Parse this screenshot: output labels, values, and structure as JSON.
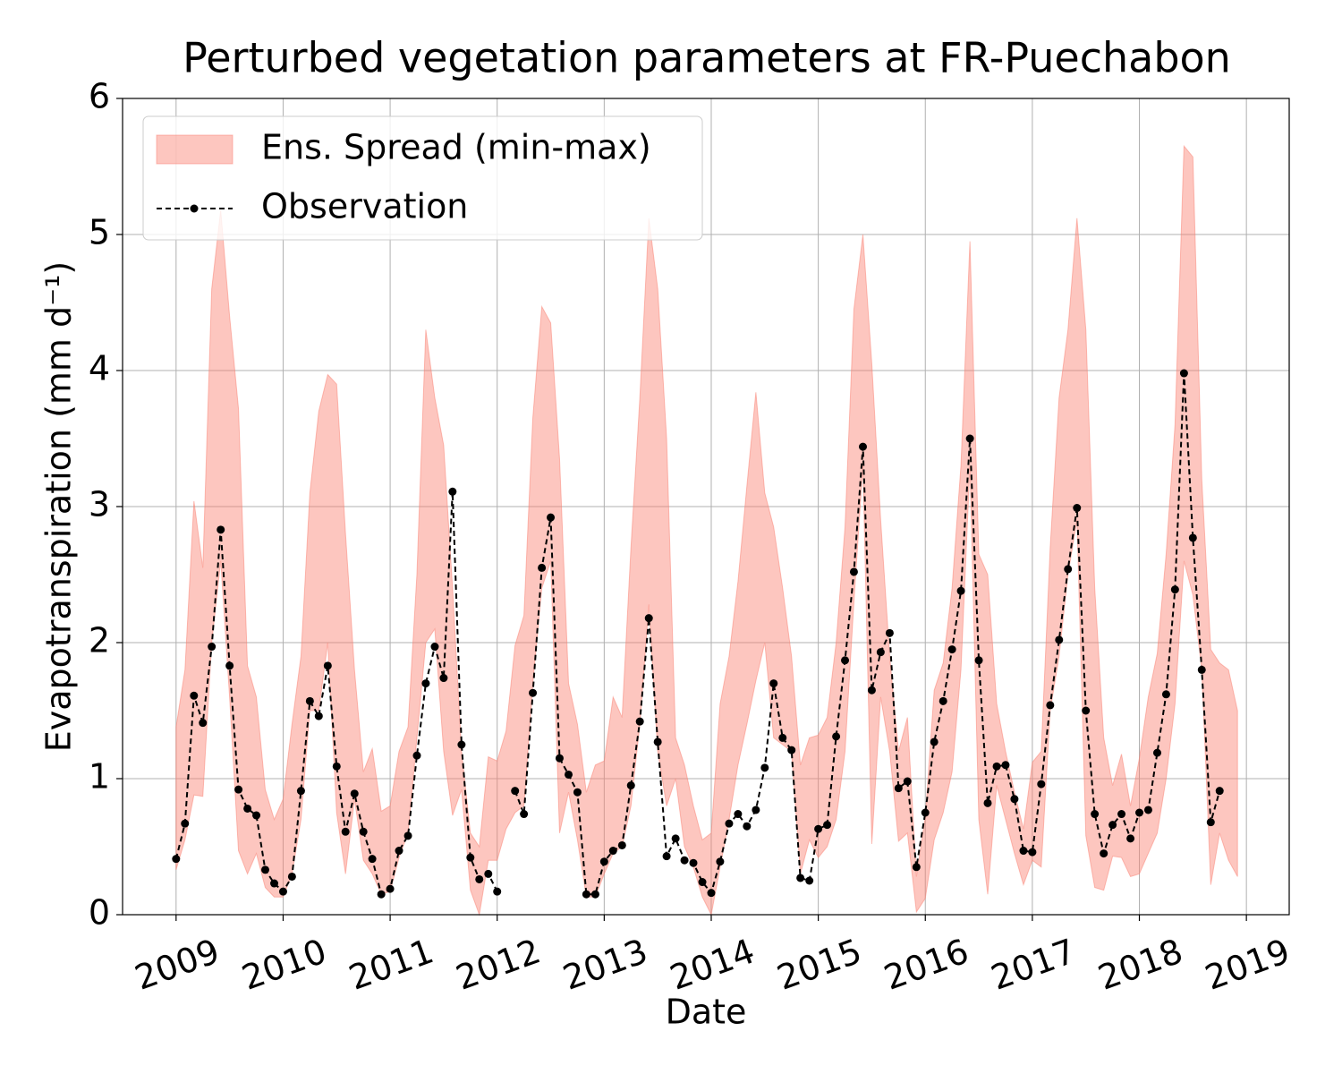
{
  "chart_data": {
    "type": "band-line",
    "title": "Perturbed vegetation parameters at FR-Puechabon",
    "xlabel": "Date",
    "ylabel": "Evapotranspiration  (mm d⁻¹)",
    "xlim": [
      2008.5,
      2019.4
    ],
    "xticks": [
      2009,
      2010,
      2011,
      2012,
      2013,
      2014,
      2015,
      2016,
      2017,
      2018,
      2019
    ],
    "ylim": [
      0,
      6
    ],
    "yticks": [
      0,
      1,
      2,
      3,
      4,
      5,
      6
    ],
    "grid": true,
    "legend": "upper left",
    "x": [
      2009,
      2009.083,
      2009.167,
      2009.25,
      2009.333,
      2009.417,
      2009.5,
      2009.583,
      2009.667,
      2009.75,
      2009.833,
      2009.917,
      2010,
      2010.083,
      2010.167,
      2010.25,
      2010.333,
      2010.417,
      2010.5,
      2010.583,
      2010.667,
      2010.75,
      2010.833,
      2010.917,
      2011,
      2011.083,
      2011.167,
      2011.25,
      2011.333,
      2011.417,
      2011.5,
      2011.583,
      2011.667,
      2011.75,
      2011.833,
      2011.917,
      2012,
      2012.083,
      2012.167,
      2012.25,
      2012.333,
      2012.417,
      2012.5,
      2012.583,
      2012.667,
      2012.75,
      2012.833,
      2012.917,
      2013,
      2013.083,
      2013.167,
      2013.25,
      2013.333,
      2013.417,
      2013.5,
      2013.583,
      2013.667,
      2013.75,
      2013.833,
      2013.917,
      2014,
      2014.083,
      2014.167,
      2014.25,
      2014.333,
      2014.417,
      2014.5,
      2014.583,
      2014.667,
      2014.75,
      2014.833,
      2014.917,
      2015,
      2015.083,
      2015.167,
      2015.25,
      2015.333,
      2015.417,
      2015.5,
      2015.583,
      2015.667,
      2015.75,
      2015.833,
      2015.917,
      2016,
      2016.083,
      2016.167,
      2016.25,
      2016.333,
      2016.417,
      2016.5,
      2016.583,
      2016.667,
      2016.75,
      2016.833,
      2016.917,
      2017,
      2017.083,
      2017.167,
      2017.25,
      2017.333,
      2017.417,
      2017.5,
      2017.583,
      2017.667,
      2017.75,
      2017.833,
      2017.917,
      2018,
      2018.083,
      2018.167,
      2018.25,
      2018.333,
      2018.417,
      2018.5,
      2018.583,
      2018.667,
      2018.75,
      2018.833,
      2018.917
    ],
    "series": [
      {
        "name": "Ens. Spread (min-max)",
        "color": "#fa8072",
        "kind": "band",
        "max": [
          1.38,
          1.8,
          3.04,
          2.55,
          4.6,
          5.18,
          4.4,
          3.72,
          1.83,
          1.6,
          0.92,
          0.7,
          0.85,
          1.4,
          1.9,
          3.1,
          3.7,
          3.97,
          3.9,
          2.8,
          1.8,
          1.05,
          1.22,
          0.76,
          0.8,
          1.2,
          1.38,
          2.5,
          4.3,
          3.8,
          3.45,
          2.4,
          1.2,
          0.6,
          0.5,
          1.16,
          1.13,
          1.35,
          1.98,
          2.2,
          3.65,
          4.47,
          4.35,
          3.35,
          1.7,
          1.4,
          0.9,
          1.1,
          1.13,
          1.6,
          1.45,
          2.7,
          3.8,
          5.12,
          4.6,
          3.5,
          1.3,
          1.1,
          0.8,
          0.55,
          0.6,
          1.55,
          1.9,
          2.45,
          3.15,
          3.84,
          3.1,
          2.85,
          2.4,
          1.9,
          1.1,
          1.3,
          1.32,
          1.45,
          2.0,
          2.85,
          4.45,
          5.0,
          4.05,
          2.9,
          1.9,
          1.2,
          1.45,
          0.28,
          0.72,
          1.65,
          1.85,
          2.4,
          3.3,
          4.95,
          2.65,
          2.5,
          1.55,
          1.2,
          0.9,
          0.63,
          1.12,
          1.2,
          2.7,
          3.8,
          4.3,
          5.12,
          4.3,
          2.4,
          1.3,
          0.95,
          1.18,
          0.8,
          1.15,
          1.6,
          1.92,
          2.65,
          3.6,
          5.65,
          5.57,
          3.2,
          1.95,
          1.85,
          1.8,
          1.5
        ],
        "min": [
          0.33,
          0.55,
          0.88,
          0.87,
          2.0,
          2.6,
          1.6,
          0.47,
          0.3,
          0.45,
          0.2,
          0.13,
          0.13,
          0.3,
          0.7,
          1.5,
          1.5,
          2.0,
          0.75,
          0.3,
          0.85,
          0.4,
          0.3,
          0.15,
          0.17,
          0.42,
          0.6,
          1.3,
          2.0,
          2.1,
          1.2,
          0.73,
          0.92,
          0.18,
          0.0,
          0.4,
          0.4,
          0.63,
          0.75,
          0.8,
          1.7,
          2.4,
          2.6,
          0.6,
          0.9,
          0.55,
          0.13,
          0.13,
          0.3,
          0.45,
          0.5,
          0.8,
          1.4,
          2.28,
          1.2,
          0.8,
          1.0,
          0.5,
          0.35,
          0.13,
          0.0,
          0.35,
          0.7,
          1.1,
          1.4,
          1.72,
          2.0,
          1.3,
          1.25,
          1.2,
          0.3,
          0.55,
          0.42,
          0.5,
          0.7,
          1.2,
          2.3,
          3.3,
          0.52,
          1.6,
          1.2,
          0.54,
          0.6,
          0.02,
          0.12,
          0.55,
          0.75,
          1.05,
          1.8,
          3.3,
          0.7,
          0.15,
          0.95,
          0.7,
          0.45,
          0.22,
          0.4,
          0.35,
          1.5,
          1.9,
          2.5,
          2.9,
          0.58,
          0.2,
          0.18,
          0.43,
          0.42,
          0.28,
          0.3,
          0.45,
          0.6,
          1.0,
          1.55,
          2.6,
          2.35,
          1.8,
          0.22,
          0.6,
          0.4,
          0.28
        ]
      },
      {
        "name": "Observation",
        "color": "#000000",
        "kind": "line",
        "values": [
          0.41,
          0.67,
          1.61,
          1.41,
          1.97,
          2.83,
          1.83,
          0.92,
          0.78,
          0.73,
          0.33,
          0.23,
          0.17,
          0.28,
          0.91,
          1.57,
          1.46,
          1.83,
          1.09,
          0.61,
          0.89,
          0.61,
          0.41,
          0.15,
          0.19,
          0.47,
          0.58,
          1.17,
          1.7,
          1.97,
          1.74,
          3.11,
          1.25,
          0.42,
          0.26,
          0.3,
          0.17,
          null,
          0.91,
          0.74,
          1.63,
          2.55,
          2.92,
          1.15,
          1.03,
          0.9,
          0.15,
          0.15,
          0.39,
          0.47,
          0.51,
          0.95,
          1.42,
          2.18,
          1.27,
          0.43,
          0.56,
          0.4,
          0.38,
          0.24,
          0.16,
          0.39,
          0.67,
          0.74,
          0.65,
          0.77,
          1.08,
          1.7,
          1.3,
          1.21,
          0.27,
          0.25,
          0.63,
          0.66,
          1.31,
          1.87,
          2.52,
          3.44,
          1.65,
          1.93,
          2.07,
          0.93,
          0.98,
          0.35,
          0.75,
          1.27,
          1.57,
          1.95,
          2.38,
          3.5,
          1.87,
          0.82,
          1.09,
          1.1,
          0.85,
          0.47,
          0.46,
          0.96,
          1.54,
          2.02,
          2.54,
          2.99,
          1.5,
          0.74,
          0.45,
          0.66,
          0.74,
          0.56,
          0.75,
          0.77,
          1.19,
          1.62,
          2.39,
          3.98,
          2.77,
          1.8,
          0.68,
          0.91,
          null,
          null
        ]
      }
    ]
  }
}
